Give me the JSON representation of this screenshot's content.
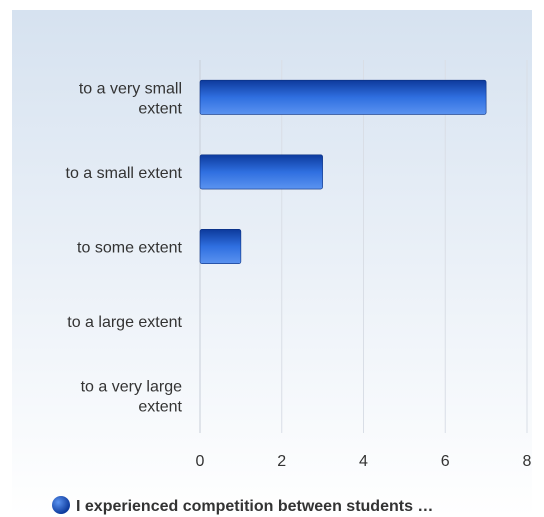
{
  "chart_data": {
    "type": "bar",
    "orientation": "horizontal",
    "categories": [
      "to a very small extent",
      "to a small extent",
      "to some extent",
      "to a large extent",
      "to a very large extent"
    ],
    "category_lines": [
      [
        "to a very small",
        "extent"
      ],
      [
        "to a small extent"
      ],
      [
        "to some extent"
      ],
      [
        "to a large extent"
      ],
      [
        "to a very large",
        "extent"
      ]
    ],
    "series": [
      {
        "name": "I experienced competition between students …",
        "values": [
          7,
          3,
          1,
          0,
          0
        ]
      }
    ],
    "xlim": [
      0,
      8
    ],
    "xticks": [
      0,
      2,
      4,
      6,
      8
    ],
    "grid": true,
    "legend_position": "bottom",
    "title": "",
    "xlabel": "",
    "ylabel": "",
    "colors": {
      "bar_dark": "#0d3a9c",
      "bar_mid": "#2f6fe0",
      "bar_light": "#5b93f0",
      "background_top": "#d6e2f0",
      "background_bottom": "#ffffff",
      "grid": "#d9dee6"
    }
  }
}
